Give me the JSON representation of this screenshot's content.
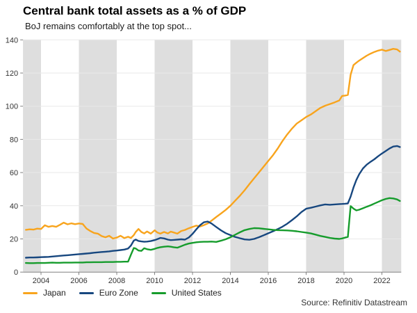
{
  "header": {
    "title": "Central bank total assets as a % of GDP",
    "subtitle": "BoJ remains comfortably at the top spot..."
  },
  "source": "Source: Refinitiv Datastream",
  "chart_data": {
    "type": "line",
    "title": "Central bank total assets as a % of GDP",
    "subtitle": "BoJ remains comfortably at the top spot...",
    "xlabel": "",
    "ylabel": "",
    "xlim": [
      2003.05,
      2023.02
    ],
    "ylim": [
      0,
      140
    ],
    "x_ticks": [
      2004,
      2006,
      2008,
      2010,
      2012,
      2014,
      2016,
      2018,
      2020,
      2022
    ],
    "y_ticks": [
      0,
      20,
      40,
      60,
      80,
      100,
      120,
      140
    ],
    "grid": "horizontal",
    "legend_position": "bottom",
    "band_color": "#DEDEDE",
    "grid_color": "#E9E9E9",
    "axis_color": "#808080",
    "bands": [
      [
        2003.05,
        2004
      ],
      [
        2006,
        2008
      ],
      [
        2010,
        2012
      ],
      [
        2014,
        2016
      ],
      [
        2018,
        2020
      ],
      [
        2022,
        2023.02
      ]
    ],
    "x": [
      2003.2,
      2003.4,
      2003.6,
      2003.8,
      2004,
      2004.2,
      2004.4,
      2004.6,
      2004.8,
      2005,
      2005.2,
      2005.4,
      2005.6,
      2005.8,
      2006,
      2006.2,
      2006.4,
      2006.6,
      2006.8,
      2007,
      2007.2,
      2007.4,
      2007.6,
      2007.8,
      2008,
      2008.2,
      2008.4,
      2008.6,
      2008.75,
      2008.9,
      2009,
      2009.15,
      2009.3,
      2009.45,
      2009.6,
      2009.8,
      2010,
      2010.15,
      2010.3,
      2010.5,
      2010.7,
      2010.85,
      2011,
      2011.2,
      2011.4,
      2011.6,
      2011.8,
      2012,
      2012.2,
      2012.4,
      2012.6,
      2012.8,
      2013,
      2013.25,
      2013.5,
      2013.75,
      2014,
      2014.25,
      2014.5,
      2014.75,
      2015,
      2015.25,
      2015.5,
      2015.75,
      2016,
      2016.25,
      2016.5,
      2016.75,
      2017,
      2017.25,
      2017.5,
      2017.75,
      2018,
      2018.25,
      2018.5,
      2018.75,
      2019,
      2019.25,
      2019.5,
      2019.75,
      2019.9,
      2020.05,
      2020.2,
      2020.35,
      2020.5,
      2020.65,
      2020.8,
      2021,
      2021.2,
      2021.4,
      2021.6,
      2021.8,
      2022,
      2022.2,
      2022.4,
      2022.6,
      2022.8,
      2022.95
    ],
    "series": [
      {
        "name": "Japan",
        "color": "#F8A41D",
        "values": [
          25.5,
          25.8,
          25.6,
          26.2,
          26.0,
          28.2,
          27.3,
          27.8,
          27.3,
          28.5,
          29.8,
          28.8,
          29.4,
          28.9,
          29.3,
          29.0,
          26.3,
          24.8,
          23.6,
          23.2,
          21.7,
          21.0,
          21.9,
          20.2,
          20.8,
          21.9,
          20.5,
          21.3,
          20.6,
          22.3,
          24.2,
          26.0,
          24.2,
          23.3,
          24.5,
          23.2,
          25.2,
          23.8,
          23.2,
          24.2,
          23.3,
          24.4,
          23.9,
          23.2,
          24.8,
          25.4,
          26.4,
          27.2,
          28.0,
          27.5,
          28.3,
          29.3,
          31.0,
          33.2,
          35.3,
          37.5,
          40.0,
          43.0,
          46.0,
          49.3,
          53.0,
          56.5,
          60.0,
          63.5,
          67.0,
          70.5,
          74.5,
          79.0,
          83.0,
          86.5,
          89.5,
          91.5,
          93.5,
          95.0,
          97.0,
          99.0,
          100.3,
          101.3,
          102.3,
          103.5,
          106.2,
          106.4,
          106.8,
          119.0,
          124.8,
          126.2,
          127.5,
          129.0,
          130.5,
          131.7,
          132.7,
          133.5,
          134.1,
          133.3,
          133.9,
          134.6,
          134.2,
          132.9
        ]
      },
      {
        "name": "Euro Zone",
        "color": "#17477F",
        "values": [
          8.7,
          8.8,
          8.8,
          8.9,
          9.0,
          9.1,
          9.2,
          9.4,
          9.6,
          9.8,
          10.0,
          10.2,
          10.4,
          10.6,
          10.8,
          11.0,
          11.2,
          11.4,
          11.7,
          11.9,
          12.1,
          12.3,
          12.5,
          12.8,
          13.0,
          13.3,
          13.6,
          14.2,
          16.0,
          19.0,
          19.6,
          18.8,
          18.5,
          18.3,
          18.4,
          18.7,
          19.3,
          19.9,
          20.6,
          20.3,
          19.6,
          19.3,
          19.4,
          19.6,
          19.8,
          19.6,
          20.8,
          23.0,
          25.8,
          28.3,
          30.0,
          30.5,
          29.3,
          27.2,
          25.2,
          23.5,
          22.3,
          21.2,
          20.4,
          19.7,
          19.5,
          20.0,
          21.0,
          22.2,
          23.4,
          24.6,
          25.9,
          27.4,
          29.2,
          31.3,
          33.6,
          36.2,
          38.2,
          38.8,
          39.5,
          40.2,
          40.8,
          40.6,
          40.8,
          41.0,
          41.1,
          41.2,
          41.4,
          45.5,
          51.0,
          55.5,
          59.0,
          62.5,
          64.8,
          66.5,
          68.0,
          69.8,
          71.5,
          73.0,
          74.5,
          75.7,
          76.0,
          75.4
        ]
      },
      {
        "name": "United States",
        "color": "#169C2C",
        "values": [
          5.5,
          5.4,
          5.4,
          5.5,
          5.5,
          5.5,
          5.6,
          5.7,
          5.6,
          5.6,
          5.7,
          5.7,
          5.7,
          5.8,
          5.8,
          5.8,
          5.9,
          5.9,
          6.0,
          6.0,
          6.0,
          6.1,
          6.1,
          6.1,
          6.2,
          6.2,
          6.3,
          6.3,
          10.5,
          14.5,
          14.2,
          13.0,
          12.8,
          14.4,
          13.8,
          13.4,
          14.0,
          14.6,
          15.0,
          15.3,
          15.5,
          15.3,
          15.0,
          14.7,
          15.6,
          16.5,
          17.2,
          17.6,
          18.0,
          18.2,
          18.3,
          18.3,
          18.4,
          18.2,
          18.9,
          19.8,
          21.0,
          22.5,
          24.0,
          25.3,
          26.0,
          26.5,
          26.4,
          26.1,
          25.8,
          25.5,
          25.3,
          25.2,
          25.1,
          24.9,
          24.6,
          24.2,
          23.8,
          23.3,
          22.6,
          21.8,
          21.2,
          20.6,
          20.2,
          20.0,
          20.3,
          20.8,
          21.2,
          39.8,
          38.3,
          37.2,
          37.6,
          38.5,
          39.4,
          40.3,
          41.3,
          42.3,
          43.3,
          44.1,
          44.6,
          44.4,
          43.8,
          42.9
        ]
      }
    ]
  }
}
